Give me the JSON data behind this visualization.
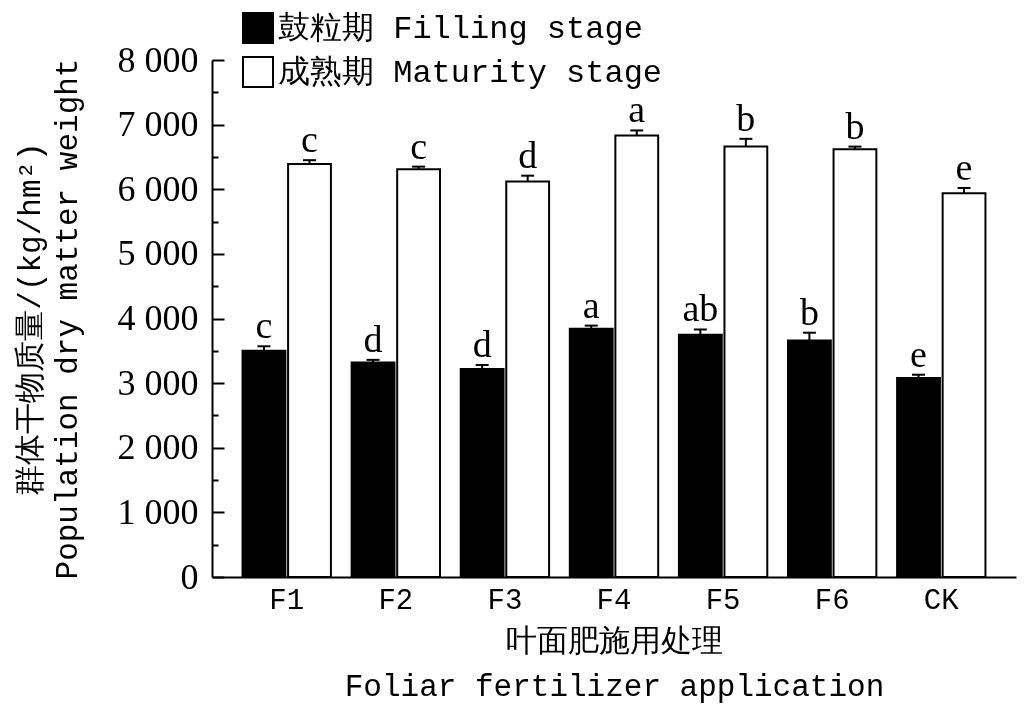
{
  "chart_data": {
    "type": "bar",
    "categories": [
      "F1",
      "F2",
      "F3",
      "F4",
      "F5",
      "F6",
      "CK"
    ],
    "series": [
      {
        "name": "鼓粒期 Filling stage",
        "color": "#000000",
        "values": [
          3500,
          3320,
          3220,
          3840,
          3750,
          3660,
          3080
        ],
        "errors": [
          [
            3500,
            3570
          ],
          [
            3320,
            3360
          ],
          [
            3220,
            3280
          ],
          [
            3840,
            3890
          ],
          [
            3750,
            3830
          ],
          [
            3660,
            3780
          ],
          [
            3080,
            3130
          ]
        ],
        "value_labels": [
          "c",
          "d",
          "d",
          "a",
          "ab",
          "b",
          "e"
        ]
      },
      {
        "name": "成熟期 Maturity stage",
        "color": "#ffffff",
        "values": [
          6390,
          6310,
          6120,
          6830,
          6660,
          6620,
          5940
        ],
        "errors": [
          [
            6390,
            6450
          ],
          [
            6310,
            6350
          ],
          [
            6120,
            6210
          ],
          [
            6830,
            6910
          ],
          [
            6660,
            6780
          ],
          [
            6620,
            6660
          ],
          [
            5940,
            6020
          ]
        ],
        "value_labels": [
          "c",
          "c",
          "d",
          "a",
          "b",
          "b",
          "e"
        ]
      }
    ],
    "xlabel": "叶面肥施用处理\nFoliar fertilizer application",
    "ylabel": "群体干物质量/(kg/hm²)\nPopulation dry matter weight",
    "ylim": [
      0,
      8000
    ],
    "yticks": [
      0,
      {
        "value": 500,
        "label": null
      },
      {
        "value": 1000,
        "label": "1 000"
      },
      {
        "value": 1500,
        "label": null
      },
      {
        "value": 2000,
        "label": "2 000"
      },
      {
        "value": 2500,
        "label": null
      },
      {
        "value": 3000,
        "label": "3 000"
      },
      {
        "value": 3500,
        "label": null
      },
      {
        "value": 4000,
        "label": "4 000"
      },
      {
        "value": 4500,
        "label": null
      },
      {
        "value": 5000,
        "label": "5 000"
      },
      {
        "value": 5500,
        "label": null
      },
      {
        "value": 6000,
        "label": "6 000"
      },
      {
        "value": 6500,
        "label": null
      },
      {
        "value": 7000,
        "label": "7 000"
      },
      {
        "value": 7500,
        "label": null
      },
      {
        "value": 8000,
        "label": "8 000"
      }
    ],
    "legend": "top left",
    "grid": false
  }
}
